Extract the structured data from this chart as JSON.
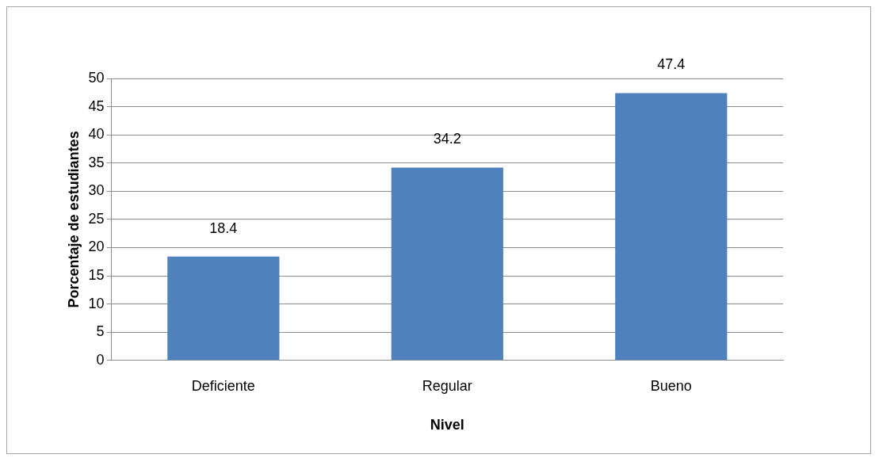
{
  "chart_data": {
    "type": "bar",
    "categories": [
      "Deficiente",
      "Regular",
      "Bueno"
    ],
    "values": [
      18.4,
      34.2,
      47.4
    ],
    "color": "#4f81bd",
    "xlabel": "Nivel",
    "ylabel": "Porcentaje de estudiantes",
    "ylim": [
      0,
      50
    ],
    "yticks": [
      0,
      5,
      10,
      15,
      20,
      25,
      30,
      35,
      40,
      45,
      50
    ],
    "grid": "y",
    "data_labels": true
  }
}
